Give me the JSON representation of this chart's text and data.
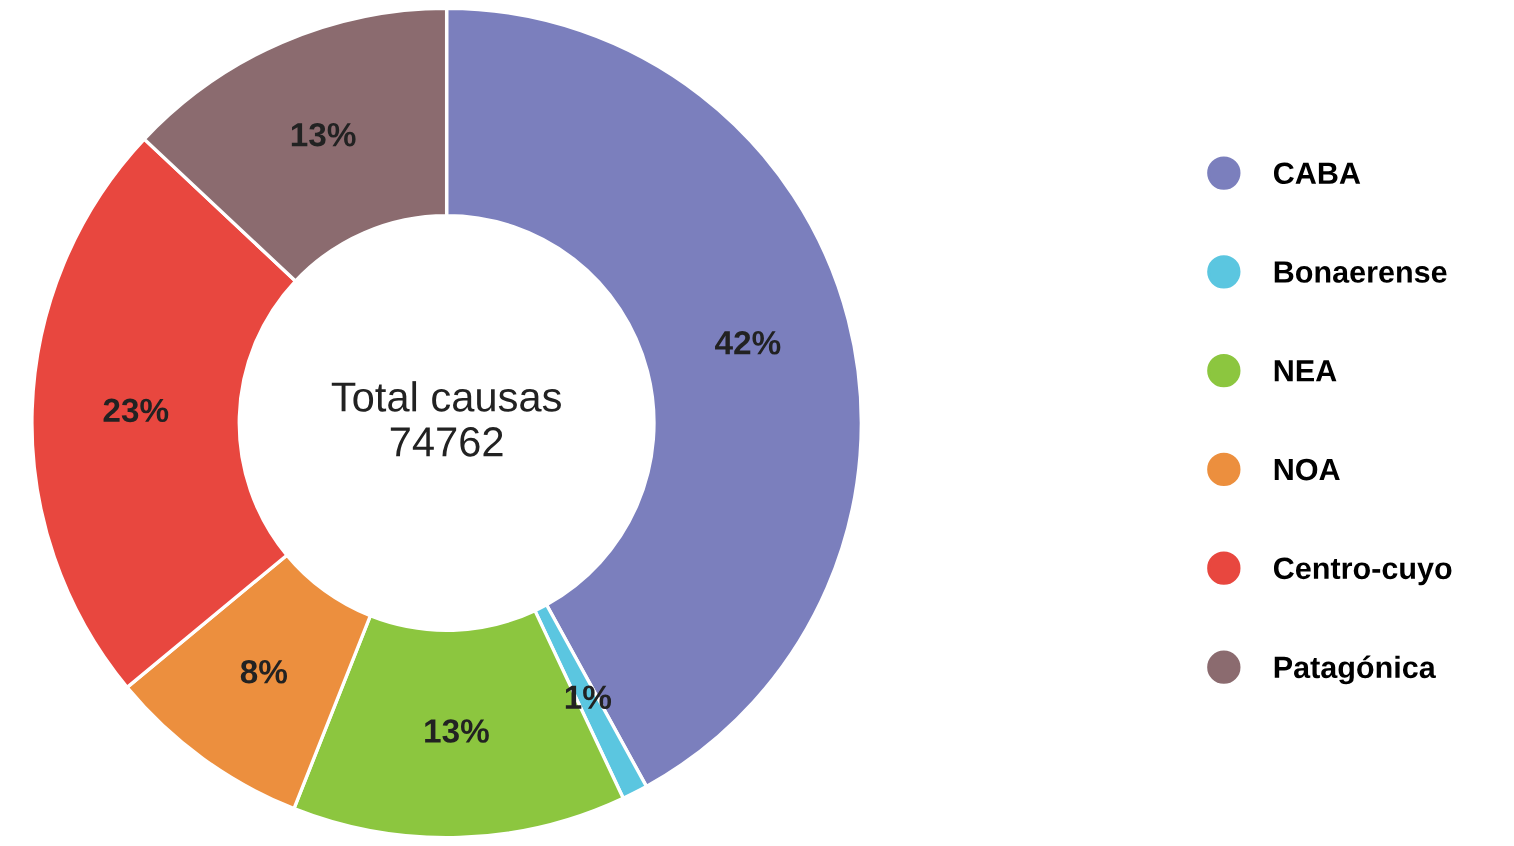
{
  "chart_data": {
    "type": "donut",
    "categories": [
      "CABA",
      "Bonaerense",
      "NEA",
      "NOA",
      "Centro-cuyo",
      "Patagónica"
    ],
    "values": [
      42,
      1,
      13,
      8,
      23,
      13
    ],
    "value_labels": [
      "42%",
      "1%",
      "13%",
      "8%",
      "23%",
      "13%"
    ],
    "colors": [
      "#7b7fbd",
      "#5bc6e0",
      "#8cc63f",
      "#ec8f3e",
      "#e8473f",
      "#8b6b6f"
    ],
    "annotations": [
      "Total causas\n74762"
    ],
    "legend": "right"
  }
}
